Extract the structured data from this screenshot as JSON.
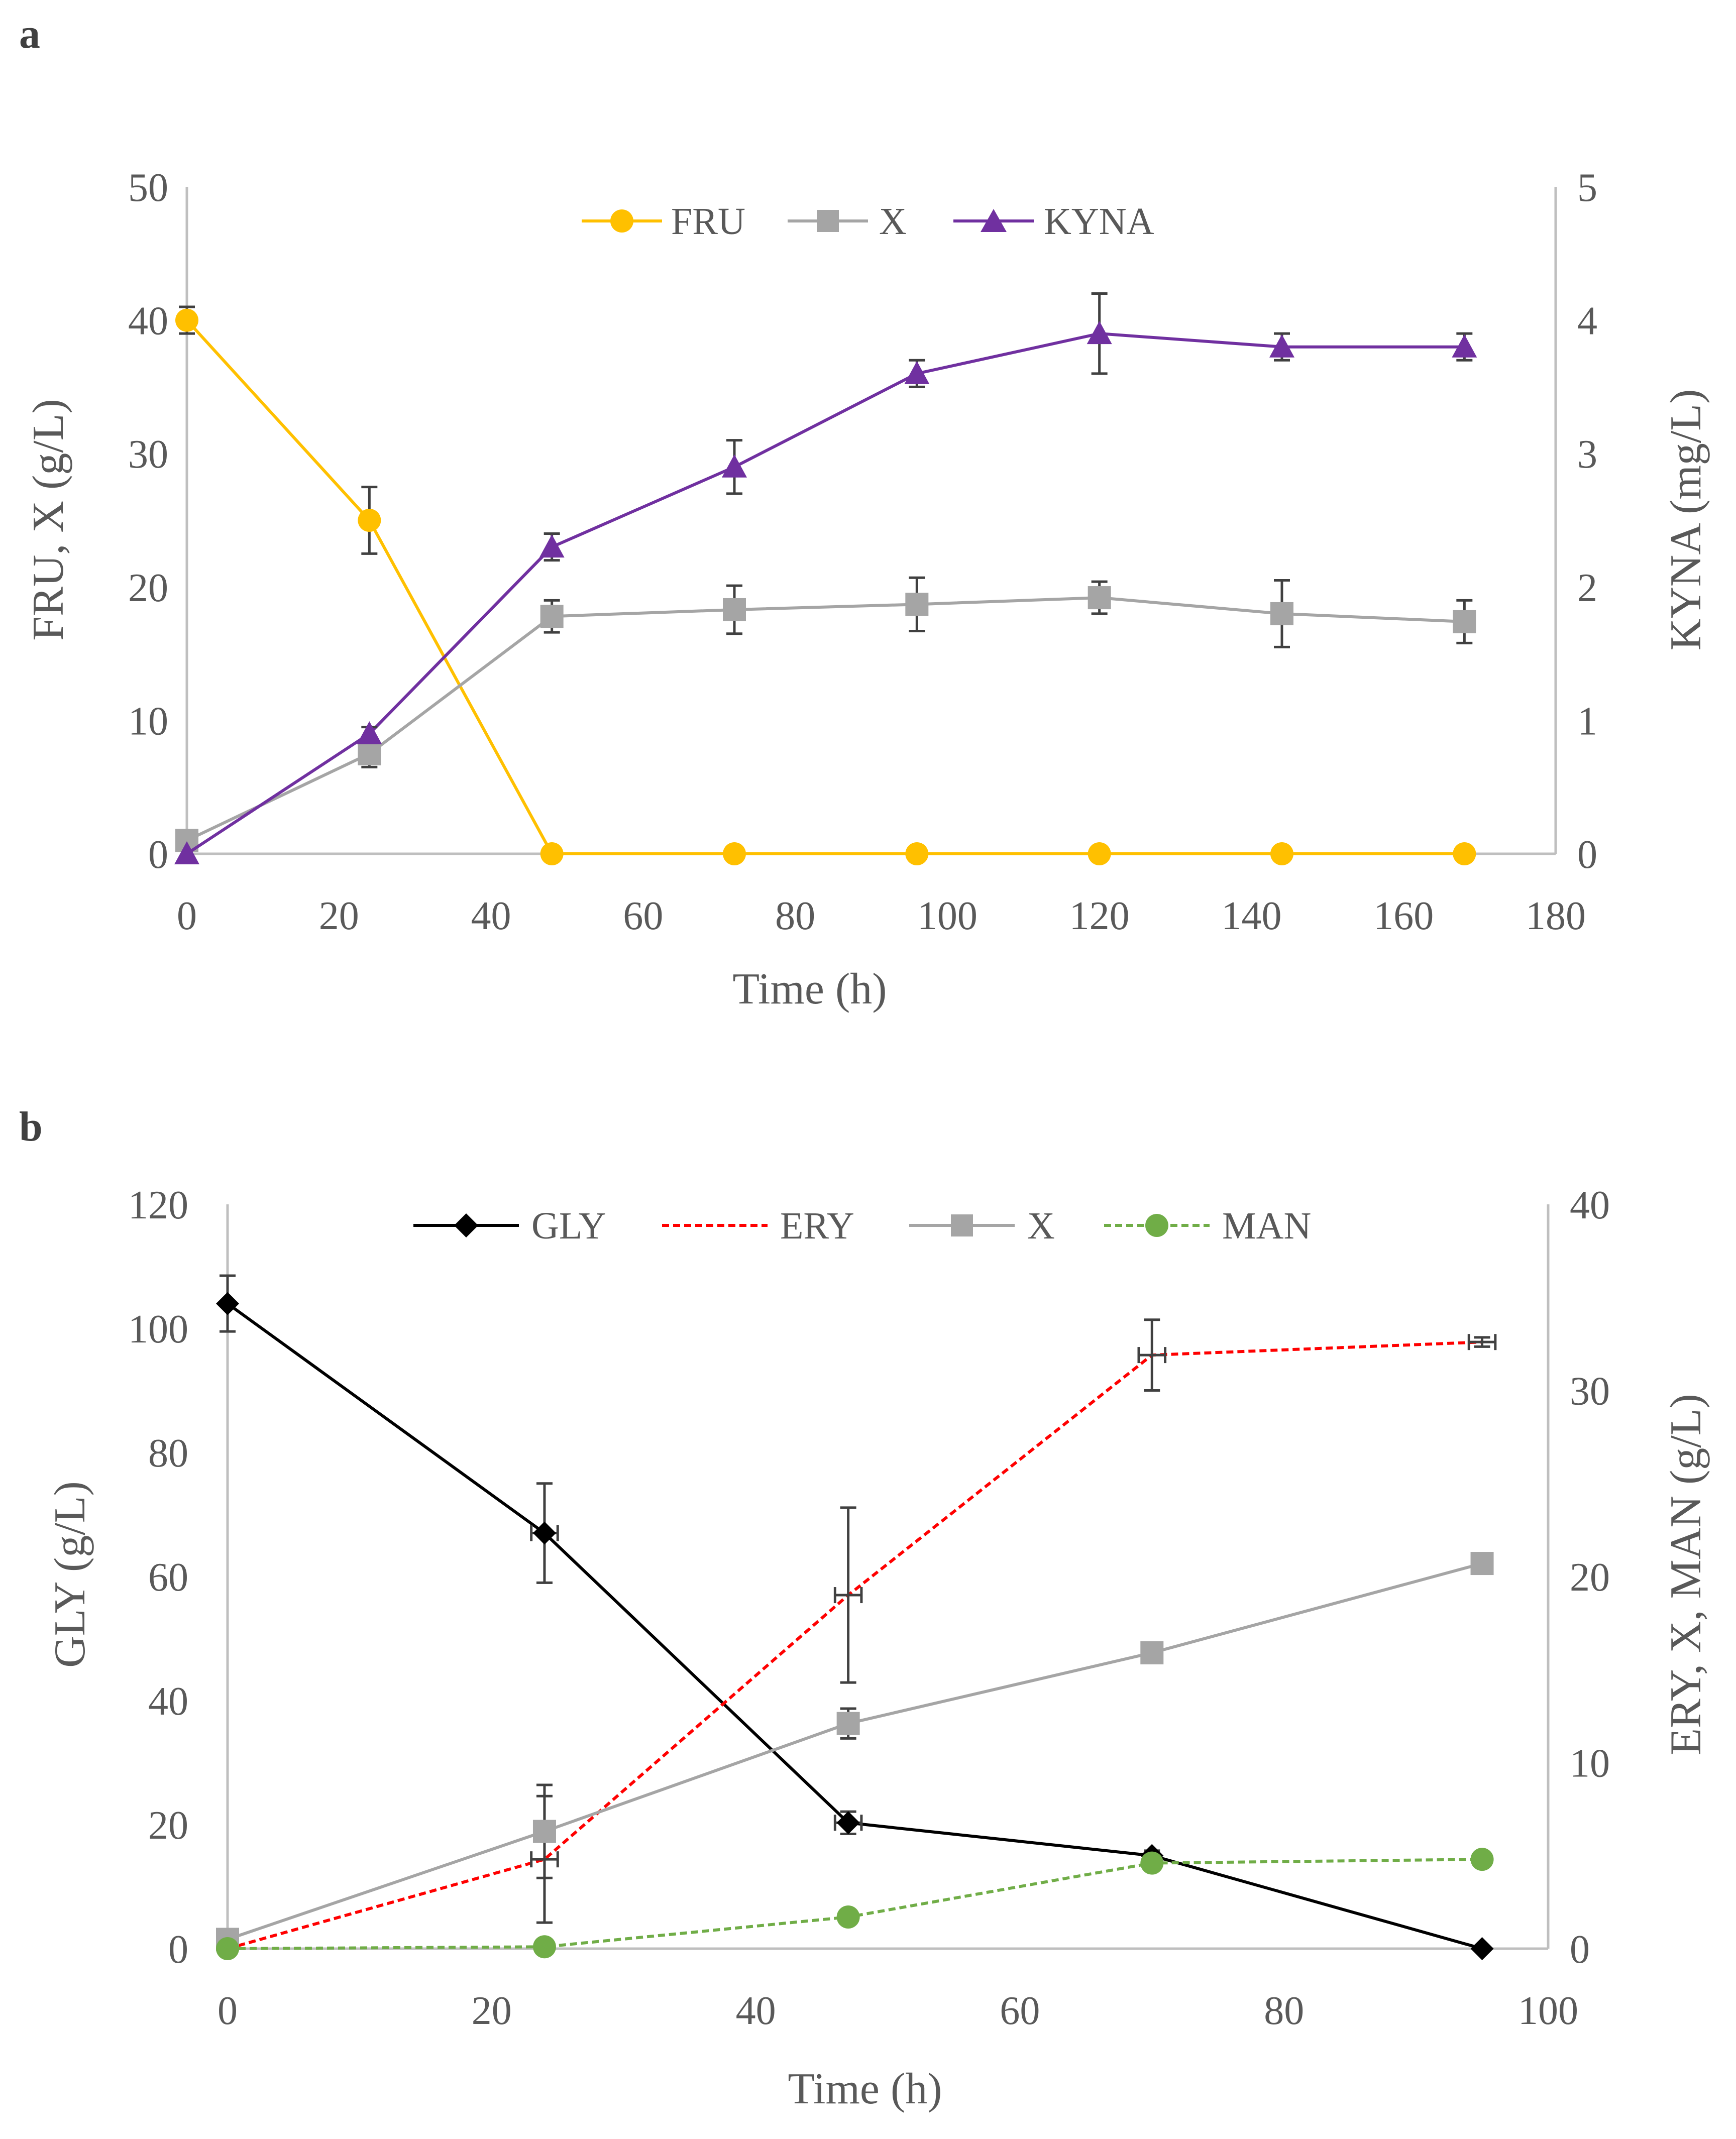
{
  "panels": [
    {
      "label": "a",
      "chart_data": {
        "type": "line",
        "xlabel": "Time (h)",
        "ylabel_left": "FRU, X (g/L)",
        "ylabel_right": "KYNA (mg/L)",
        "xlim": [
          0,
          180
        ],
        "ylim_left": [
          0,
          50
        ],
        "ylim_right": [
          0,
          5
        ],
        "xticks": [
          0,
          20,
          40,
          60,
          80,
          100,
          120,
          140,
          160,
          180
        ],
        "yticks_left": [
          0,
          10,
          20,
          30,
          40,
          50
        ],
        "yticks_right": [
          0,
          1,
          2,
          3,
          4,
          5
        ],
        "grid": false,
        "legend_position": "top-center",
        "series": [
          {
            "name": "FRU",
            "axis": "left",
            "color": "#FFC000",
            "marker": "circle",
            "dash": "solid",
            "x": [
              0,
              24,
              48,
              72,
              96,
              120,
              144,
              168
            ],
            "y": [
              40,
              25,
              0,
              0,
              0,
              0,
              0,
              0
            ],
            "yerr": [
              1,
              2.5,
              0,
              0,
              0,
              0,
              0,
              0
            ]
          },
          {
            "name": "X",
            "axis": "left",
            "color": "#A5A5A5",
            "marker": "square",
            "dash": "solid",
            "x": [
              0,
              24,
              48,
              72,
              96,
              120,
              144,
              168
            ],
            "y": [
              1,
              7.5,
              17.8,
              18.3,
              18.7,
              19.2,
              18,
              17.4
            ],
            "yerr": [
              0,
              1,
              1.2,
              1.8,
              2,
              1.2,
              2.5,
              1.6
            ]
          },
          {
            "name": "KYNA",
            "axis": "right",
            "color": "#7030A0",
            "marker": "triangle",
            "dash": "solid",
            "x": [
              0,
              24,
              48,
              72,
              96,
              120,
              144,
              168
            ],
            "y": [
              0,
              0.9,
              2.3,
              2.9,
              3.6,
              3.9,
              3.8,
              3.8
            ],
            "yerr": [
              0,
              0.05,
              0.1,
              0.2,
              0.1,
              0.3,
              0.1,
              0.1
            ]
          }
        ]
      }
    },
    {
      "label": "b",
      "chart_data": {
        "type": "line",
        "xlabel": "Time (h)",
        "ylabel_left": "GLY  (g/L)",
        "ylabel_right": "ERY, X, MAN (g/L)",
        "xlim": [
          0,
          100
        ],
        "ylim_left": [
          0,
          120
        ],
        "ylim_right": [
          0,
          40
        ],
        "xticks": [
          0,
          20,
          40,
          60,
          80,
          100
        ],
        "yticks_left": [
          0,
          20,
          40,
          60,
          80,
          100,
          120
        ],
        "yticks_right": [
          0,
          10,
          20,
          30,
          40
        ],
        "grid": false,
        "legend_position": "top-center",
        "series": [
          {
            "name": "GLY",
            "axis": "left",
            "color": "#000000",
            "marker": "diamond",
            "dash": "solid",
            "x": [
              0,
              24,
              47,
              70,
              95
            ],
            "y": [
              104,
              67,
              20.3,
              15,
              0
            ],
            "yerr": [
              4.5,
              8,
              1.8,
              0.8,
              0
            ],
            "xerr": [
              0,
              1,
              1,
              0,
              0
            ]
          },
          {
            "name": "ERY",
            "axis": "right",
            "color": "#FF0000",
            "marker": "none",
            "dash": "dashed",
            "x": [
              0,
              24,
              47,
              70,
              95
            ],
            "y": [
              0,
              4.8,
              19,
              31.9,
              32.6
            ],
            "yerr": [
              0,
              3.4,
              4.7,
              1.9,
              0.25
            ],
            "xerr": [
              0,
              1,
              1,
              1,
              1
            ]
          },
          {
            "name": "X",
            "axis": "right",
            "color": "#A5A5A5",
            "marker": "square",
            "dash": "solid",
            "x": [
              0,
              24,
              47,
              70,
              95
            ],
            "y": [
              0.5,
              6.3,
              12.1,
              15.9,
              20.7
            ],
            "yerr": [
              0,
              2.5,
              0.8,
              0.2,
              0.2
            ]
          },
          {
            "name": "MAN",
            "axis": "right",
            "color": "#70AD47",
            "marker": "circle",
            "dash": "dashed",
            "x": [
              0,
              24,
              47,
              70,
              95
            ],
            "y": [
              0,
              0.1,
              1.7,
              4.6,
              4.8
            ],
            "yerr": [
              0,
              0,
              0,
              0.3,
              0.2
            ]
          }
        ]
      }
    }
  ]
}
